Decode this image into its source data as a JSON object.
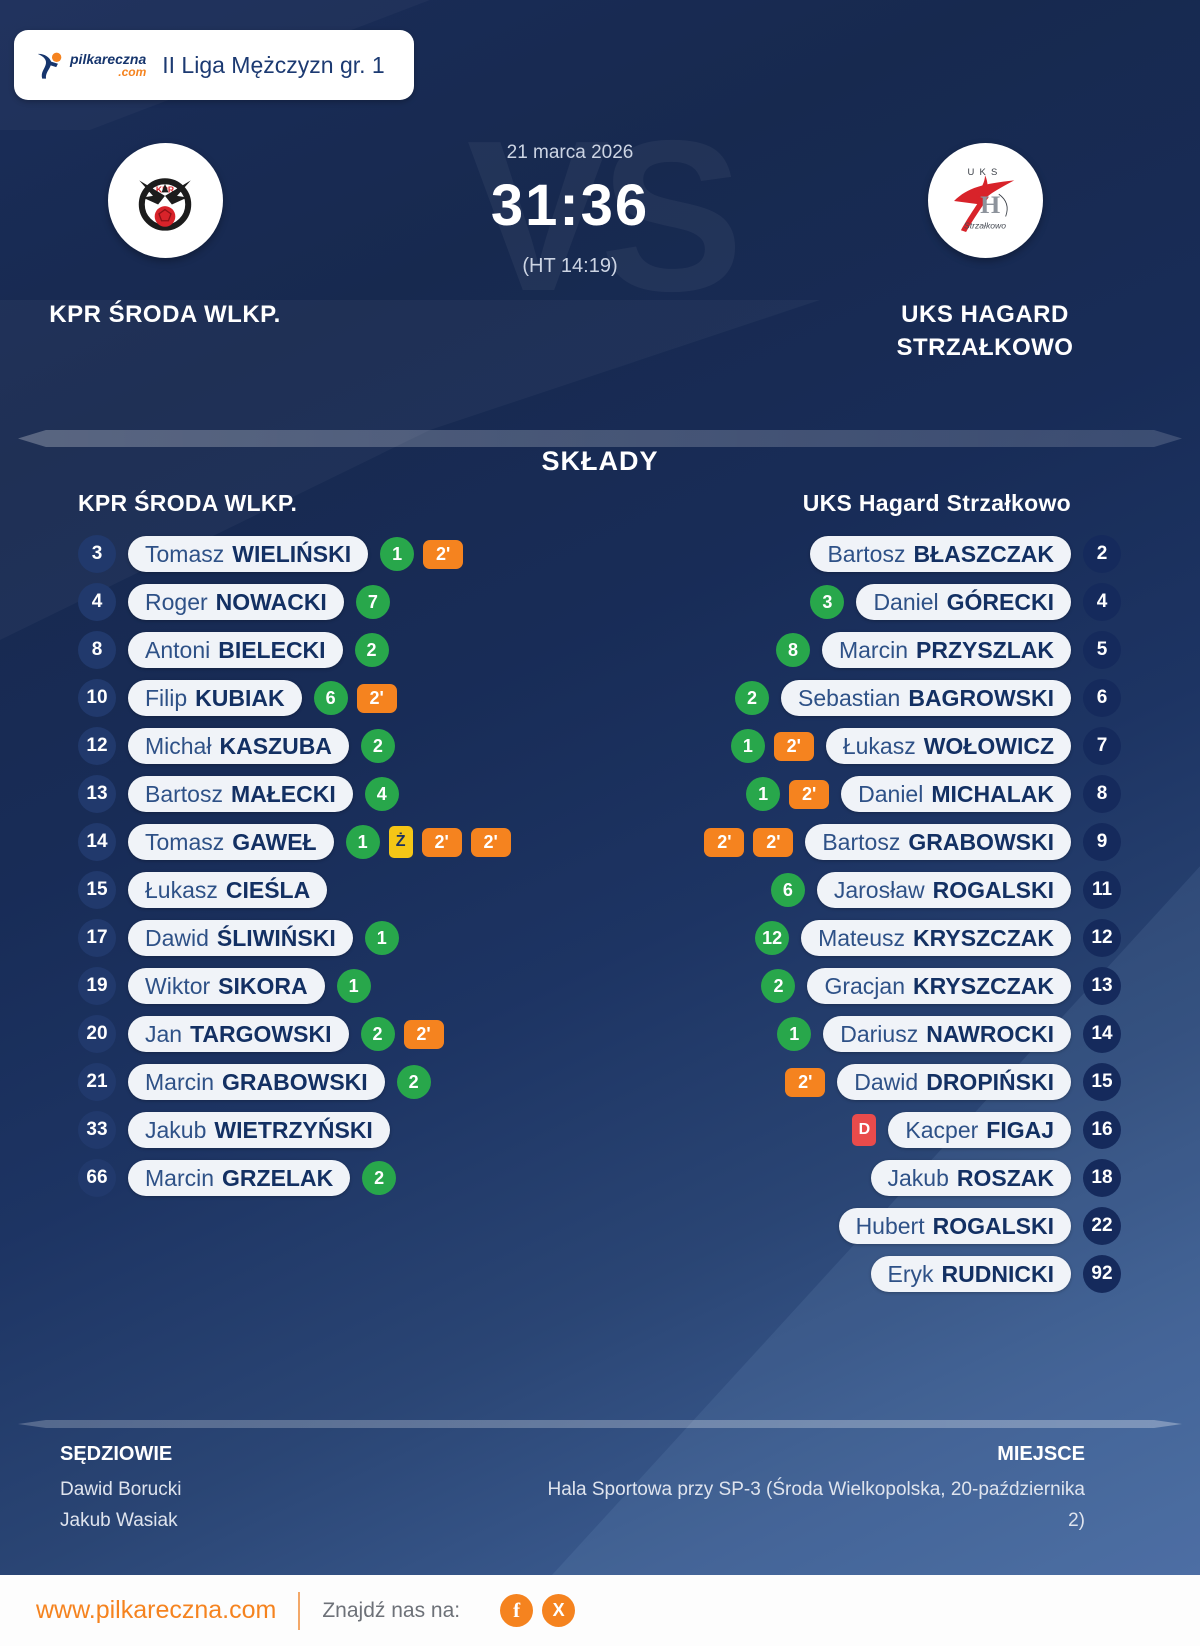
{
  "header": {
    "logo_word": "pilkareczna",
    "logo_tld": ".com",
    "league": "II Liga Mężczyzn gr. 1"
  },
  "match": {
    "date": "21 marca 2026",
    "score": "31:36",
    "halftime": "(HT 14:19)",
    "vs_watermark": "VS",
    "home_name": "KPR ŚRODA WLKP.",
    "away_name_line1": "UKS HAGARD",
    "away_name_line2": "STRZAŁKOWO"
  },
  "lineups": {
    "title": "SKŁADY",
    "home_header": "KPR ŚRODA WLKP.",
    "away_header": "UKS Hagard Strzałkowo",
    "badge_labels": {
      "two_min": "2'",
      "yellow_card": "Ż",
      "red_card": "D"
    },
    "home_players": [
      {
        "number": "3",
        "first": "Tomasz",
        "last": "WIELIŃSKI",
        "goals": "1",
        "two_min": 1
      },
      {
        "number": "4",
        "first": "Roger",
        "last": "NOWACKI",
        "goals": "7",
        "two_min": 0
      },
      {
        "number": "8",
        "first": "Antoni",
        "last": "BIELECKI",
        "goals": "2",
        "two_min": 0
      },
      {
        "number": "10",
        "first": "Filip",
        "last": "KUBIAK",
        "goals": "6",
        "two_min": 1
      },
      {
        "number": "12",
        "first": "Michał",
        "last": "KASZUBA",
        "goals": "2",
        "two_min": 0
      },
      {
        "number": "13",
        "first": "Bartosz",
        "last": "MAŁECKI",
        "goals": "4",
        "two_min": 0
      },
      {
        "number": "14",
        "first": "Tomasz",
        "last": "GAWEŁ",
        "goals": "1",
        "yellow": true,
        "two_min": 2
      },
      {
        "number": "15",
        "first": "Łukasz",
        "last": "CIEŚLA",
        "goals": null,
        "two_min": 0
      },
      {
        "number": "17",
        "first": "Dawid",
        "last": "ŚLIWIŃSKI",
        "goals": "1",
        "two_min": 0
      },
      {
        "number": "19",
        "first": "Wiktor",
        "last": "SIKORA",
        "goals": "1",
        "two_min": 0
      },
      {
        "number": "20",
        "first": "Jan",
        "last": "TARGOWSKI",
        "goals": "2",
        "two_min": 1
      },
      {
        "number": "21",
        "first": "Marcin",
        "last": "GRABOWSKI",
        "goals": "2",
        "two_min": 0
      },
      {
        "number": "33",
        "first": "Jakub",
        "last": "WIETRZYŃSKI",
        "goals": null,
        "two_min": 0
      },
      {
        "number": "66",
        "first": "Marcin",
        "last": "GRZELAK",
        "goals": "2",
        "two_min": 0
      }
    ],
    "away_players": [
      {
        "number": "2",
        "first": "Bartosz",
        "last": "BŁASZCZAK",
        "goals": null,
        "two_min": 0
      },
      {
        "number": "4",
        "first": "Daniel",
        "last": "GÓRECKI",
        "goals": "3",
        "two_min": 0
      },
      {
        "number": "5",
        "first": "Marcin",
        "last": "PRZYSZLAK",
        "goals": "8",
        "two_min": 0
      },
      {
        "number": "6",
        "first": "Sebastian",
        "last": "BAGROWSKI",
        "goals": "2",
        "two_min": 0
      },
      {
        "number": "7",
        "first": "Łukasz",
        "last": "WOŁOWICZ",
        "goals": "1",
        "two_min": 1
      },
      {
        "number": "8",
        "first": "Daniel",
        "last": "MICHALAK",
        "goals": "1",
        "two_min": 1
      },
      {
        "number": "9",
        "first": "Bartosz",
        "last": "GRABOWSKI",
        "goals": null,
        "two_min": 2
      },
      {
        "number": "11",
        "first": "Jarosław",
        "last": "ROGALSKI",
        "goals": "6",
        "two_min": 0
      },
      {
        "number": "12",
        "first": "Mateusz",
        "last": "KRYSZCZAK",
        "goals": "12",
        "two_min": 0
      },
      {
        "number": "13",
        "first": "Gracjan",
        "last": "KRYSZCZAK",
        "goals": "2",
        "two_min": 0
      },
      {
        "number": "14",
        "first": "Dariusz",
        "last": "NAWROCKI",
        "goals": "1",
        "two_min": 0
      },
      {
        "number": "15",
        "first": "Dawid",
        "last": "DROPIŃSKI",
        "goals": null,
        "two_min": 1
      },
      {
        "number": "16",
        "first": "Kacper",
        "last": "FIGAJ",
        "goals": null,
        "two_min": 0,
        "red": true
      },
      {
        "number": "18",
        "first": "Jakub",
        "last": "ROSZAK",
        "goals": null,
        "two_min": 0
      },
      {
        "number": "22",
        "first": "Hubert",
        "last": "ROGALSKI",
        "goals": null,
        "two_min": 0
      },
      {
        "number": "92",
        "first": "Eryk",
        "last": "RUDNICKI",
        "goals": null,
        "two_min": 0
      }
    ]
  },
  "footer": {
    "referees_label": "SĘDZIOWIE",
    "referees": [
      "Dawid Borucki",
      "Jakub Wasiak"
    ],
    "venue_label": "MIEJSCE",
    "venue_line1": "Hala Sportowa przy SP-3 (Środa Wielkopolska, 20-października",
    "venue_line2": "2)"
  },
  "bottom_bar": {
    "site_url": "www.pilkareczna.com",
    "find_us_label": "Znajdź nas na:",
    "facebook_glyph": "f",
    "x_glyph": "X"
  },
  "colors": {
    "background_navy": "#17294f",
    "pill_white": "#f0f3f8",
    "goal_green": "#28a74b",
    "penalty_orange": "#f5831f",
    "yellow_card": "#f5c616",
    "red_card": "#e94b4b",
    "accent_orange": "#f5831f"
  }
}
